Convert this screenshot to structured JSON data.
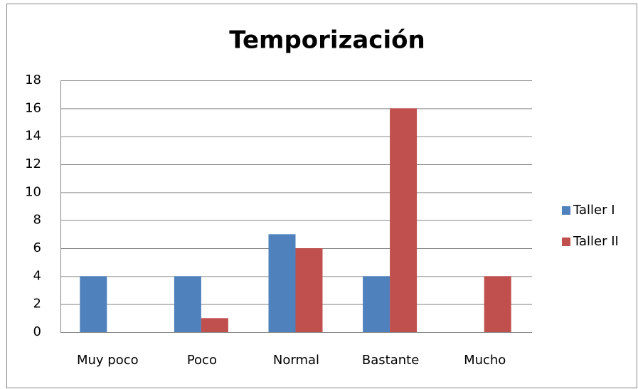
{
  "chart_data": {
    "type": "bar",
    "title": "Temporización",
    "categories": [
      "Muy poco",
      "Poco",
      "Normal",
      "Bastante",
      "Mucho"
    ],
    "series": [
      {
        "name": "Taller I",
        "color": "#4f81bd",
        "values": [
          4,
          4,
          7,
          4,
          0
        ]
      },
      {
        "name": "Taller II",
        "color": "#c0504d",
        "values": [
          0,
          1,
          6,
          16,
          4
        ]
      }
    ],
    "ylim": [
      0,
      18
    ],
    "yticks": [
      0,
      2,
      4,
      6,
      8,
      10,
      12,
      14,
      16,
      18
    ],
    "grid": true,
    "legend": "right"
  }
}
